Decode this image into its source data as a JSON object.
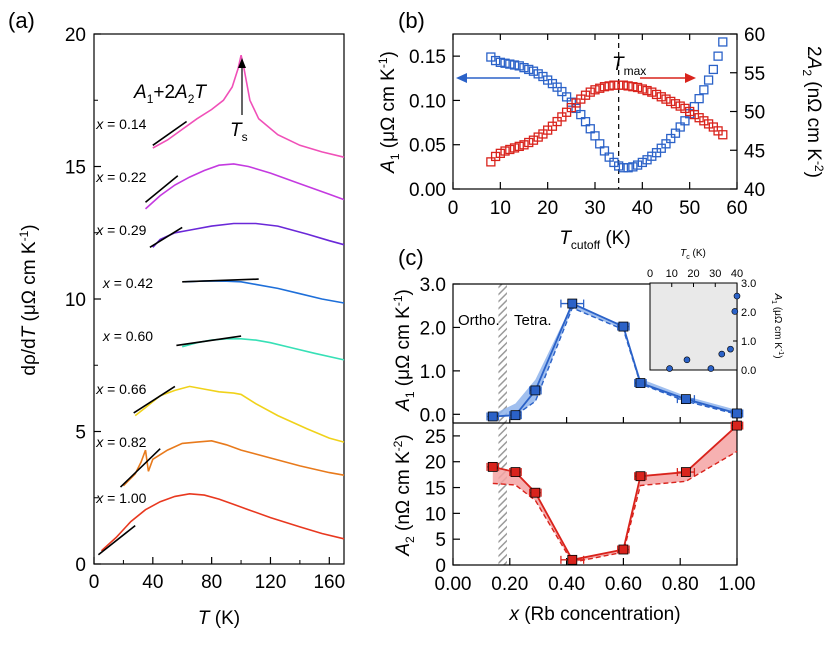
{
  "colors": {
    "axis": "#000000",
    "blue": "#2b62c8",
    "blue_fill": "#8fb4ec",
    "red": "#d9231c",
    "red_fill": "#f4a3a3",
    "inset_bg": "#e9e9e9",
    "hatch": "#9a9a9a",
    "fit_line": "#000000"
  },
  "panels": {
    "a": {
      "label": "(a)",
      "ylabel_parts": [
        "dρ/d",
        "T",
        "  (μΩ cm K",
        "-1",
        ")"
      ],
      "xlabel_parts": [
        "T",
        " (K)"
      ],
      "annot_formula": [
        "A",
        "1",
        "+2",
        "A",
        "2",
        "T"
      ],
      "annot_ts": [
        "T",
        "s"
      ]
    },
    "b": {
      "label": "(b)",
      "ylabel_left_parts": [
        "A",
        "1",
        " (μΩ cm K",
        "-1",
        ")"
      ],
      "ylabel_right_parts": [
        "2",
        "A",
        "2",
        " (nΩ cm K",
        "-2",
        ")"
      ],
      "xlabel_parts": [
        "T",
        "cutoff",
        " (K)"
      ],
      "tmax_parts": [
        "T",
        "max"
      ]
    },
    "c": {
      "label": "(c)",
      "ylabel_top_parts": [
        "A",
        "1",
        " (μΩ cm K",
        "-1",
        ")"
      ],
      "ylabel_bottom_parts": [
        "A",
        "2",
        " (nΩ cm K",
        "-2",
        ")"
      ],
      "xlabel_parts": [
        "x",
        " (Rb concentration)"
      ],
      "ortho_label": "Ortho.",
      "tetra_label": "Tetra.",
      "inset": {
        "xlabel_parts": [
          "T",
          "c",
          " (K)"
        ],
        "ylabel_parts": [
          "A",
          "1",
          " (μΩ cm K",
          "-1",
          ")"
        ]
      }
    }
  },
  "chart_data": [
    {
      "type": "line",
      "panel": "a",
      "xlabel": "T (K)",
      "ylabel": "dρ/dT (μΩ cm K-1)",
      "xlim": [
        0,
        170
      ],
      "ylim": [
        0,
        20
      ],
      "xticks": [
        "0",
        "40",
        "80",
        "120",
        "160"
      ],
      "yticks": [
        "0",
        "5",
        "10",
        "15",
        "20"
      ],
      "series": [
        {
          "name": "x = 1.00",
          "color": "#e8381f",
          "label_x": 1.5,
          "label_y": 2.5,
          "points": [
            [
              5,
              0.5
            ],
            [
              15,
              1.0
            ],
            [
              25,
              1.6
            ],
            [
              35,
              2.05
            ],
            [
              45,
              2.35
            ],
            [
              55,
              2.55
            ],
            [
              65,
              2.65
            ],
            [
              75,
              2.6
            ],
            [
              85,
              2.45
            ],
            [
              95,
              2.25
            ],
            [
              105,
              2.05
            ],
            [
              120,
              1.75
            ],
            [
              140,
              1.4
            ],
            [
              155,
              1.15
            ],
            [
              170,
              0.95
            ]
          ],
          "fit": [
            [
              3,
              0.35
            ],
            [
              28,
              1.45
            ]
          ]
        },
        {
          "name": "x = 0.82",
          "color": "#e87a1c",
          "label_x": 1.5,
          "label_y": 4.6,
          "points": [
            [
              20,
              2.95
            ],
            [
              28,
              3.4
            ],
            [
              32,
              3.85
            ],
            [
              35,
              4.3
            ],
            [
              37,
              3.5
            ],
            [
              40,
              3.95
            ],
            [
              50,
              4.3
            ],
            [
              60,
              4.55
            ],
            [
              70,
              4.6
            ],
            [
              80,
              4.65
            ],
            [
              90,
              4.5
            ],
            [
              100,
              4.3
            ],
            [
              120,
              4.0
            ],
            [
              140,
              3.7
            ],
            [
              160,
              3.45
            ],
            [
              170,
              3.35
            ]
          ],
          "fit": [
            [
              18,
              2.9
            ],
            [
              45,
              4.35
            ]
          ]
        },
        {
          "name": "x = 0.66",
          "color": "#f0d21a",
          "label_x": 1.5,
          "label_y": 6.6,
          "points": [
            [
              28,
              5.6
            ],
            [
              35,
              5.9
            ],
            [
              45,
              6.35
            ],
            [
              55,
              6.55
            ],
            [
              65,
              6.7
            ],
            [
              75,
              6.6
            ],
            [
              85,
              6.5
            ],
            [
              95,
              6.45
            ],
            [
              100,
              6.4
            ],
            [
              110,
              6.05
            ],
            [
              125,
              5.6
            ],
            [
              145,
              5.1
            ],
            [
              160,
              4.75
            ],
            [
              170,
              4.6
            ]
          ],
          "fit": [
            [
              27,
              5.7
            ],
            [
              55,
              6.7
            ]
          ]
        },
        {
          "name": "x = 0.60",
          "color": "#37e0b6",
          "label_x": 6,
          "label_y": 8.6,
          "points": [
            [
              60,
              8.2
            ],
            [
              70,
              8.35
            ],
            [
              80,
              8.45
            ],
            [
              90,
              8.5
            ],
            [
              100,
              8.5
            ],
            [
              110,
              8.45
            ],
            [
              120,
              8.35
            ],
            [
              135,
              8.15
            ],
            [
              150,
              7.95
            ],
            [
              170,
              7.7
            ]
          ],
          "fit": [
            [
              56,
              8.25
            ],
            [
              100,
              8.6
            ]
          ]
        },
        {
          "name": "x = 0.42",
          "color": "#1e6fd9",
          "label_x": 6,
          "label_y": 10.6,
          "points": [
            [
              62,
              10.65
            ],
            [
              75,
              10.68
            ],
            [
              90,
              10.67
            ],
            [
              100,
              10.65
            ],
            [
              110,
              10.55
            ],
            [
              125,
              10.4
            ],
            [
              140,
              10.2
            ],
            [
              155,
              10.0
            ],
            [
              170,
              9.85
            ]
          ],
          "fit": [
            [
              60,
              10.65
            ],
            [
              112,
              10.75
            ]
          ]
        },
        {
          "name": "x = 0.29",
          "color": "#6a28d8",
          "label_x": 1.5,
          "label_y": 12.6,
          "points": [
            [
              40,
              11.95
            ],
            [
              45,
              12.25
            ],
            [
              55,
              12.5
            ],
            [
              65,
              12.6
            ],
            [
              80,
              12.75
            ],
            [
              95,
              12.85
            ],
            [
              110,
              12.85
            ],
            [
              125,
              12.75
            ],
            [
              145,
              12.45
            ],
            [
              160,
              12.2
            ],
            [
              170,
              12.05
            ]
          ],
          "fit": [
            [
              38,
              11.95
            ],
            [
              60,
              12.7
            ]
          ]
        },
        {
          "name": "x = 0.22",
          "color": "#c43ae0",
          "label_x": 1.5,
          "label_y": 14.6,
          "points": [
            [
              35,
              13.4
            ],
            [
              45,
              13.9
            ],
            [
              55,
              14.3
            ],
            [
              65,
              14.6
            ],
            [
              75,
              14.85
            ],
            [
              85,
              15.05
            ],
            [
              95,
              15.1
            ],
            [
              105,
              15.0
            ],
            [
              120,
              14.75
            ],
            [
              140,
              14.35
            ],
            [
              160,
              13.95
            ],
            [
              170,
              13.75
            ]
          ],
          "fit": [
            [
              35,
              13.65
            ],
            [
              57,
              14.65
            ]
          ]
        },
        {
          "name": "x = 0.14",
          "color": "#f050b8",
          "label_x": 1.5,
          "label_y": 16.6,
          "points": [
            [
              40,
              15.7
            ],
            [
              50,
              16.0
            ],
            [
              60,
              16.4
            ],
            [
              70,
              16.8
            ],
            [
              80,
              17.15
            ],
            [
              88,
              17.5
            ],
            [
              94,
              18.0
            ],
            [
              98,
              18.7
            ],
            [
              100,
              19.2
            ],
            [
              102,
              18.7
            ],
            [
              106,
              17.5
            ],
            [
              112,
              16.8
            ],
            [
              125,
              16.2
            ],
            [
              140,
              15.8
            ],
            [
              155,
              15.55
            ],
            [
              170,
              15.35
            ]
          ],
          "fit": [
            [
              40,
              15.8
            ],
            [
              63,
              16.7
            ]
          ]
        }
      ]
    },
    {
      "type": "scatter",
      "panel": "b",
      "xlabel": "Tcutoff (K)",
      "ylabel_left": "A1 (μΩ cm K-1)",
      "ylabel_right": "2A2 (nΩ cm K-2)",
      "xlim": [
        0,
        60
      ],
      "ylim_left": [
        0,
        0.175
      ],
      "ylim_right": [
        40,
        60
      ],
      "xticks": [
        "0",
        "10",
        "20",
        "30",
        "40",
        "50",
        "60"
      ],
      "yticks_left": [
        "0.00",
        "0.05",
        "0.10",
        "0.15"
      ],
      "yticks_right": [
        "40",
        "45",
        "50",
        "55",
        "60"
      ],
      "tmax": 35,
      "series": [
        {
          "name": "A1",
          "axis": "left",
          "color": "#2b62c8",
          "x": [
            8,
            9,
            10,
            11,
            12,
            13,
            14,
            15,
            16,
            17,
            18,
            19,
            20,
            21,
            22,
            23,
            24,
            25,
            26,
            27,
            28,
            29,
            30,
            31,
            32,
            33,
            34,
            35,
            36,
            37,
            38,
            39,
            40,
            41,
            42,
            43,
            44,
            45,
            46,
            47,
            48,
            49,
            50,
            51,
            52,
            53,
            54,
            55,
            56,
            57
          ],
          "y": [
            0.149,
            0.145,
            0.143,
            0.142,
            0.141,
            0.14,
            0.139,
            0.137,
            0.135,
            0.133,
            0.13,
            0.127,
            0.123,
            0.119,
            0.115,
            0.11,
            0.104,
            0.098,
            0.091,
            0.084,
            0.076,
            0.068,
            0.06,
            0.051,
            0.043,
            0.036,
            0.03,
            0.026,
            0.024,
            0.024,
            0.025,
            0.027,
            0.03,
            0.033,
            0.037,
            0.041,
            0.046,
            0.051,
            0.057,
            0.063,
            0.07,
            0.077,
            0.085,
            0.093,
            0.102,
            0.112,
            0.123,
            0.135,
            0.15,
            0.166
          ]
        },
        {
          "name": "2A2",
          "axis": "right",
          "color": "#d9231c",
          "x": [
            8,
            9,
            10,
            11,
            12,
            13,
            14,
            15,
            16,
            17,
            18,
            19,
            20,
            21,
            22,
            23,
            24,
            25,
            26,
            27,
            28,
            29,
            30,
            31,
            32,
            33,
            34,
            35,
            36,
            37,
            38,
            39,
            40,
            41,
            42,
            43,
            44,
            45,
            46,
            47,
            48,
            49,
            50,
            51,
            52,
            53,
            54,
            55,
            56,
            57
          ],
          "y": [
            43.5,
            44.2,
            44.6,
            44.9,
            45.1,
            45.3,
            45.5,
            45.7,
            46.0,
            46.3,
            46.7,
            47.1,
            47.6,
            48.1,
            48.7,
            49.3,
            49.9,
            50.5,
            51.1,
            51.6,
            52.1,
            52.5,
            52.8,
            53.0,
            53.2,
            53.3,
            53.4,
            53.4,
            53.4,
            53.3,
            53.2,
            53.1,
            52.9,
            52.7,
            52.5,
            52.2,
            51.9,
            51.6,
            51.3,
            51.0,
            50.7,
            50.4,
            50.0,
            49.6,
            49.2,
            48.8,
            48.4,
            48.0,
            47.5,
            47.0
          ]
        }
      ]
    },
    {
      "type": "scatter",
      "panel": "c-top",
      "xlabel": "x (Rb concentration)",
      "ylabel": "A1 (μΩ cm K-1)",
      "xlim": [
        0,
        1
      ],
      "ylim": [
        -0.2,
        3.0
      ],
      "xticks": [
        "0.00",
        "0.20",
        "0.40",
        "0.60",
        "0.80",
        "1.00"
      ],
      "yticks": [
        "0.0",
        "1.0",
        "2.0",
        "3.0"
      ],
      "phase_boundary_x": [
        0.16,
        0.19
      ],
      "series": [
        {
          "name": "A1",
          "color": "#2b62c8",
          "x": [
            0.14,
            0.22,
            0.29,
            0.42,
            0.6,
            0.66,
            0.82,
            1.0
          ],
          "y": [
            -0.05,
            -0.02,
            0.55,
            2.55,
            2.02,
            0.72,
            0.35,
            0.02
          ],
          "xerr": [
            0.02,
            0.02,
            0.02,
            0.04,
            0.02,
            0.02,
            0.03,
            0.02
          ],
          "band_upper": [
            0.0,
            0.25,
            0.8,
            2.55,
            2.05,
            0.82,
            0.42,
            0.1
          ],
          "band_lower": [
            -0.05,
            -0.02,
            0.3,
            2.45,
            1.95,
            0.7,
            0.3,
            0.0
          ]
        }
      ],
      "inset": {
        "xlabel": "Tc (K)",
        "ylabel": "A1 (μΩ cm K-1)",
        "xlim": [
          0,
          40
        ],
        "ylim": [
          0,
          3.0
        ],
        "xticks": [
          "0",
          "10",
          "20",
          "30",
          "40"
        ],
        "yticks": [
          "0.0",
          "1.0",
          "2.0",
          "3.0"
        ],
        "x": [
          9,
          17,
          28,
          33,
          37,
          39,
          40
        ],
        "y": [
          0.05,
          0.35,
          0.05,
          0.55,
          0.72,
          2.02,
          2.55
        ]
      }
    },
    {
      "type": "scatter",
      "panel": "c-bottom",
      "xlabel": "x (Rb concentration)",
      "ylabel": "A2 (nΩ cm K-2)",
      "xlim": [
        0,
        1
      ],
      "ylim": [
        0,
        27.5
      ],
      "xticks": [
        "0.00",
        "0.20",
        "0.40",
        "0.60",
        "0.80",
        "1.00"
      ],
      "yticks": [
        "0",
        "5",
        "10",
        "15",
        "20",
        "25"
      ],
      "series": [
        {
          "name": "A2",
          "color": "#d9231c",
          "x": [
            0.14,
            0.22,
            0.29,
            0.42,
            0.6,
            0.66,
            0.82,
            1.0
          ],
          "y": [
            19.0,
            18.0,
            14.0,
            1.0,
            3.0,
            17.2,
            18.0,
            27.0
          ],
          "xerr": [
            0.02,
            0.02,
            0.02,
            0.04,
            0.02,
            0.02,
            0.03,
            0.02
          ],
          "band_upper": [
            19.0,
            18.0,
            14.3,
            1.0,
            3.0,
            17.4,
            18.2,
            27.0
          ],
          "band_lower": [
            15.8,
            15.5,
            12.5,
            0.5,
            2.5,
            15.4,
            16.2,
            22.0
          ]
        }
      ]
    }
  ]
}
